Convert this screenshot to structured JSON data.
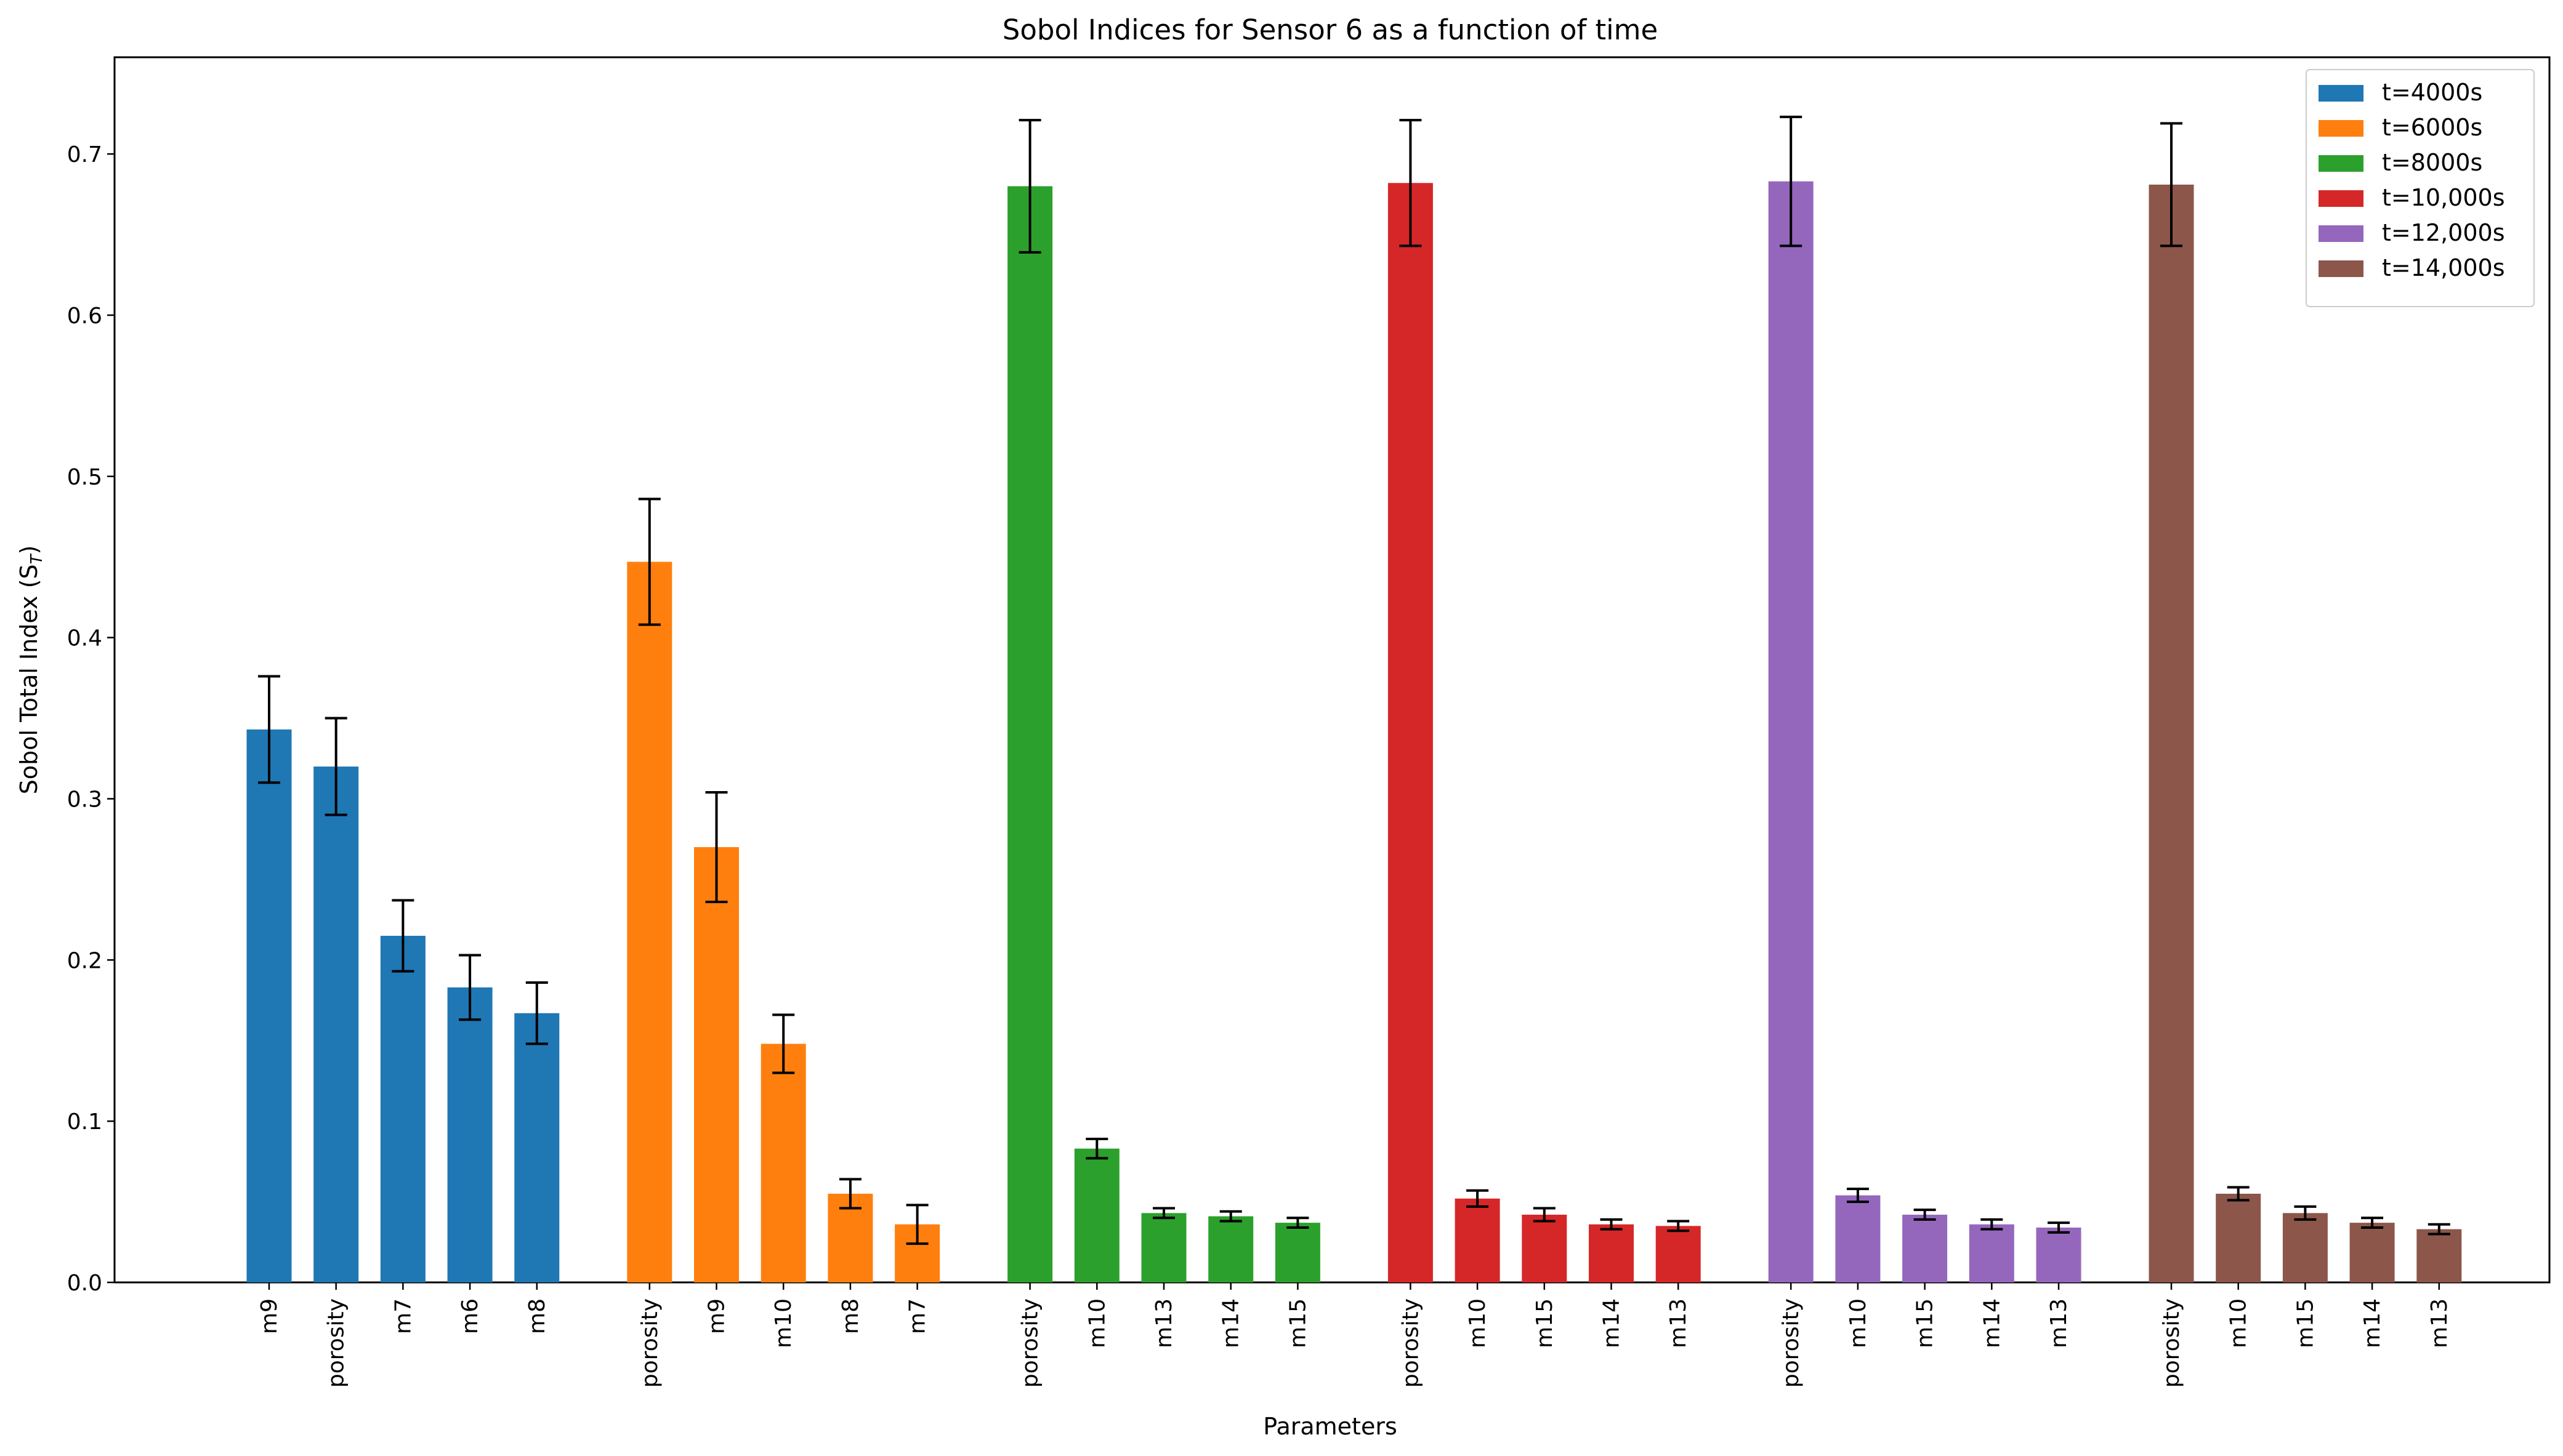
{
  "chart_data": {
    "type": "bar",
    "title": "Sobol Indices for Sensor 6 as a function of time",
    "xlabel": "Parameters",
    "ylabel_main": "Sobol Total Index (S",
    "ylabel_sub": "T",
    "ylabel_close": ")",
    "ylim": [
      0,
      0.76
    ],
    "yticks": [
      "0.0",
      "0.1",
      "0.2",
      "0.3",
      "0.4",
      "0.5",
      "0.6",
      "0.7"
    ],
    "legend_position": "top-right",
    "error_bar_color": "#000000",
    "groups": [
      {
        "name": "t=4000s",
        "color": "#1f77b4",
        "bars": [
          {
            "label": "m9",
            "value": 0.343,
            "err": 0.033
          },
          {
            "label": "porosity",
            "value": 0.32,
            "err": 0.03
          },
          {
            "label": "m7",
            "value": 0.215,
            "err": 0.022
          },
          {
            "label": "m6",
            "value": 0.183,
            "err": 0.02
          },
          {
            "label": "m8",
            "value": 0.167,
            "err": 0.019
          }
        ]
      },
      {
        "name": "t=6000s",
        "color": "#ff7f0e",
        "bars": [
          {
            "label": "porosity",
            "value": 0.447,
            "err": 0.039
          },
          {
            "label": "m9",
            "value": 0.27,
            "err": 0.034
          },
          {
            "label": "m10",
            "value": 0.148,
            "err": 0.018
          },
          {
            "label": "m8",
            "value": 0.055,
            "err": 0.009
          },
          {
            "label": "m7",
            "value": 0.036,
            "err": 0.012
          }
        ]
      },
      {
        "name": "t=8000s",
        "color": "#2ca02c",
        "bars": [
          {
            "label": "porosity",
            "value": 0.68,
            "err": 0.041
          },
          {
            "label": "m10",
            "value": 0.083,
            "err": 0.006
          },
          {
            "label": "m13",
            "value": 0.043,
            "err": 0.003
          },
          {
            "label": "m14",
            "value": 0.041,
            "err": 0.003
          },
          {
            "label": "m15",
            "value": 0.037,
            "err": 0.003
          }
        ]
      },
      {
        "name": "t=10,000s",
        "color": "#d62728",
        "bars": [
          {
            "label": "porosity",
            "value": 0.682,
            "err": 0.039
          },
          {
            "label": "m10",
            "value": 0.052,
            "err": 0.005
          },
          {
            "label": "m15",
            "value": 0.042,
            "err": 0.004
          },
          {
            "label": "m14",
            "value": 0.036,
            "err": 0.003
          },
          {
            "label": "m13",
            "value": 0.035,
            "err": 0.003
          }
        ]
      },
      {
        "name": "t=12,000s",
        "color": "#9467bd",
        "bars": [
          {
            "label": "porosity",
            "value": 0.683,
            "err": 0.04
          },
          {
            "label": "m10",
            "value": 0.054,
            "err": 0.004
          },
          {
            "label": "m15",
            "value": 0.042,
            "err": 0.003
          },
          {
            "label": "m14",
            "value": 0.036,
            "err": 0.003
          },
          {
            "label": "m13",
            "value": 0.034,
            "err": 0.003
          }
        ]
      },
      {
        "name": "t=14,000s",
        "color": "#8c564b",
        "bars": [
          {
            "label": "porosity",
            "value": 0.681,
            "err": 0.038
          },
          {
            "label": "m10",
            "value": 0.055,
            "err": 0.004
          },
          {
            "label": "m15",
            "value": 0.043,
            "err": 0.004
          },
          {
            "label": "m14",
            "value": 0.037,
            "err": 0.003
          },
          {
            "label": "m13",
            "value": 0.033,
            "err": 0.003
          }
        ]
      }
    ]
  }
}
